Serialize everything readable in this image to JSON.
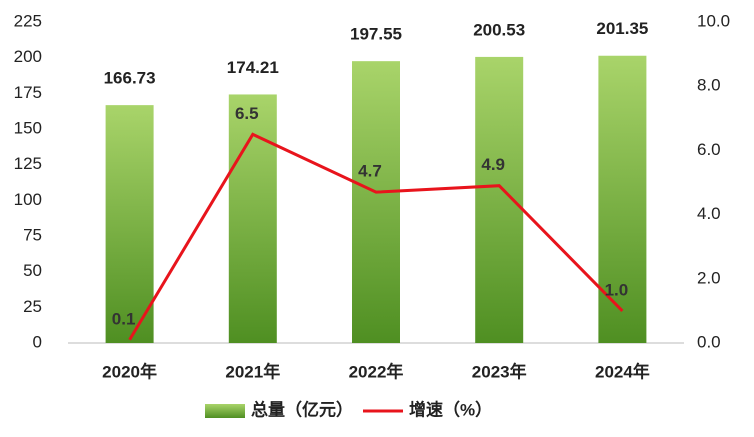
{
  "chart_data": {
    "type": "bar-line",
    "categories": [
      "2020年",
      "2021年",
      "2022年",
      "2023年",
      "2024年"
    ],
    "series": [
      {
        "name": "总量（亿元）",
        "type": "bar",
        "color": "#4f8f22",
        "values": [
          166.73,
          174.21,
          197.55,
          200.53,
          201.35
        ]
      },
      {
        "name": "增速（%）",
        "type": "line",
        "axis": "y2",
        "color": "#e8141c",
        "values": [
          0.1,
          6.5,
          4.7,
          4.9,
          1.0
        ],
        "value_labels": [
          "0.1",
          "6.5",
          "4.7",
          "4.9",
          "1.0"
        ]
      }
    ],
    "ylim": [
      0,
      225
    ],
    "yticks": [
      0,
      25,
      50,
      75,
      100,
      125,
      150,
      175,
      200,
      225
    ],
    "y2lim": [
      0,
      10
    ],
    "y2ticks": [
      {
        "value": 0,
        "label": "0.0"
      },
      {
        "value": 2,
        "label": "2.0"
      },
      {
        "value": 4,
        "label": "4.0"
      },
      {
        "value": 6,
        "label": "6.0"
      },
      {
        "value": 8,
        "label": "8.0"
      },
      {
        "value": 10,
        "label": "10.0"
      }
    ],
    "legend": "bottom"
  }
}
